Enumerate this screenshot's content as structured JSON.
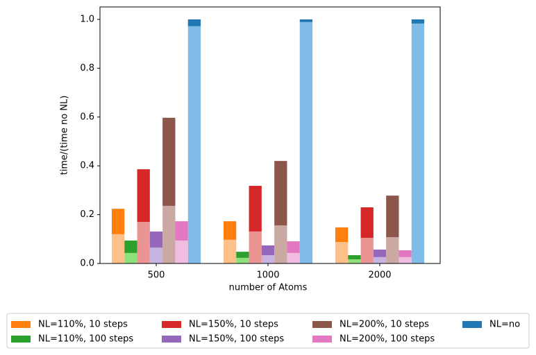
{
  "chart_data": {
    "type": "stacked_bar",
    "xlabel": "number of Atoms",
    "ylabel": "time/(time no NL)",
    "categories": [
      "500",
      "1000",
      "2000"
    ],
    "ylim": [
      0,
      1.051
    ],
    "yticks": [
      {
        "value": 0,
        "label": "0.0"
      },
      {
        "value": 0.2,
        "label": "0.2"
      },
      {
        "value": 0.4,
        "label": "0.4"
      },
      {
        "value": 0.6,
        "label": "0.6"
      },
      {
        "value": 0.8,
        "label": "0.8"
      },
      {
        "value": 1,
        "label": "1.0"
      }
    ],
    "legend_position": "below",
    "series": [
      {
        "name": "NL=110%, 10 steps",
        "color": "#ff7f0e",
        "lower_color": "#fdc08a",
        "lower_values": [
          0.12,
          0.097,
          0.088
        ],
        "values": [
          0.104,
          0.076,
          0.06
        ]
      },
      {
        "name": "NL=110%, 100 steps",
        "color": "#2ca02c",
        "lower_color": "#8ee07d",
        "lower_values": [
          0.043,
          0.023,
          0.017
        ],
        "values": [
          0.051,
          0.025,
          0.017
        ]
      },
      {
        "name": "NL=150%, 10 steps",
        "color": "#d62728",
        "lower_color": "#ea9594",
        "lower_values": [
          0.17,
          0.131,
          0.105
        ],
        "values": [
          0.216,
          0.187,
          0.125
        ]
      },
      {
        "name": "NL=150%, 100 steps",
        "color": "#9467bd",
        "lower_color": "#c6b3e0",
        "lower_values": [
          0.065,
          0.034,
          0.026
        ],
        "values": [
          0.066,
          0.04,
          0.031
        ]
      },
      {
        "name": "NL=200%, 10 steps",
        "color": "#8c564b",
        "lower_color": "#c9a9a2",
        "lower_values": [
          0.236,
          0.156,
          0.108
        ],
        "values": [
          0.361,
          0.264,
          0.17
        ]
      },
      {
        "name": "NL=200%, 100 steps",
        "color": "#e377c2",
        "lower_color": "#f0bde0",
        "lower_values": [
          0.094,
          0.043,
          0.026
        ],
        "values": [
          0.079,
          0.048,
          0.028
        ]
      },
      {
        "name": "NL=no",
        "color": "#1f77b4",
        "lower_color": "#7fbde8",
        "lower_values": [
          0.972,
          0.989,
          0.983
        ],
        "values": [
          0.028,
          0.011,
          0.017
        ]
      }
    ]
  }
}
